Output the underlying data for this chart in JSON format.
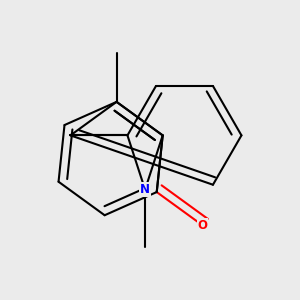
{
  "background_color": "#ebebeb",
  "bond_color": "#000000",
  "nitrogen_color": "#0000ff",
  "oxygen_color": "#ff0000",
  "line_width": 1.5,
  "figsize": [
    3.0,
    3.0
  ],
  "dpi": 100
}
